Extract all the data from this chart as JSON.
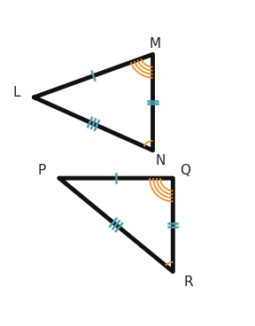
{
  "triangle1": {
    "L": [
      0.13,
      0.76
    ],
    "M": [
      0.6,
      0.93
    ],
    "N": [
      0.6,
      0.55
    ],
    "label_L": [
      0.06,
      0.78,
      "L"
    ],
    "label_M": [
      0.61,
      0.97,
      "M"
    ],
    "label_N": [
      0.63,
      0.51,
      "N"
    ]
  },
  "triangle2": {
    "P": [
      0.23,
      0.44
    ],
    "Q": [
      0.68,
      0.44
    ],
    "R": [
      0.68,
      0.07
    ],
    "label_P": [
      0.16,
      0.47,
      "P"
    ],
    "label_Q": [
      0.73,
      0.47,
      "Q"
    ],
    "label_R": [
      0.74,
      0.03,
      "R"
    ]
  },
  "line_color": "#111111",
  "line_width": 3.5,
  "tick_color": "#4a9eb0",
  "arc_color": "#e8922a",
  "label_fontsize": 11,
  "bg_color": "#ffffff"
}
